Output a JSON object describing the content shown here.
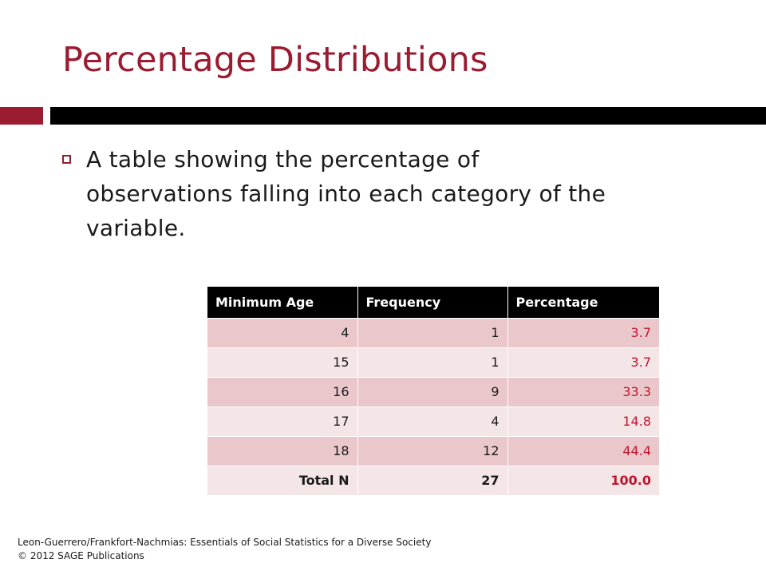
{
  "slide": {
    "title": "Percentage Distributions",
    "bullet": "A table showing the percentage of observations falling into each category of the variable."
  },
  "table": {
    "headers": [
      "Minimum Age",
      "Frequency",
      "Percentage"
    ],
    "rows": [
      [
        "4",
        "1",
        "3.7"
      ],
      [
        "15",
        "1",
        "3.7"
      ],
      [
        "16",
        "9",
        "33.3"
      ],
      [
        "17",
        "4",
        "14.8"
      ],
      [
        "18",
        "12",
        "44.4"
      ]
    ],
    "total": [
      "Total N",
      "27",
      "100.0"
    ]
  },
  "footer": {
    "line1": "Leon-Guerrero/Frankfort-Nachmias: Essentials of Social Statistics for a Diverse Society",
    "line2": "© 2012 SAGE Publications"
  },
  "colors": {
    "accent": "#9b1b30",
    "percentage_text": "#c0152d",
    "row_dark": "#e9c7cb",
    "row_light": "#f4e5e6"
  },
  "icons": {
    "bullet": "hollow-square-bullet-icon"
  }
}
